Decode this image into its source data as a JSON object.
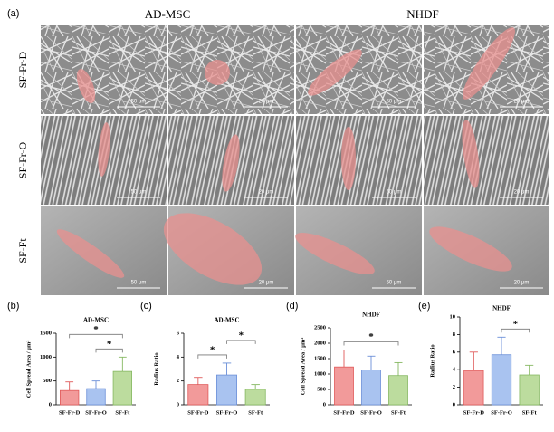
{
  "figure": {
    "panel_labels": [
      "(a)",
      "(b)",
      "(c)",
      "(d)",
      "(e)"
    ],
    "column_headers": [
      "AD-MSC",
      "NHDF"
    ],
    "rows": [
      {
        "label": "SF-Fr-D",
        "scale_bars": [
          "50 μm",
          "20 μm",
          "50 μm",
          "20 μm"
        ]
      },
      {
        "label": "SF-Fr-O",
        "scale_bars": [
          "50 μm",
          "20 μm",
          "50 μm",
          "20 μm"
        ]
      },
      {
        "label": "SF-Ft",
        "scale_bars": [
          "50 μm",
          "20 μm",
          "50 μm",
          "20 μm"
        ]
      }
    ]
  },
  "chart_data": [
    {
      "type": "bar",
      "title": "AD-MSC",
      "y_label": "Cell Spread Area / μm²",
      "categories": [
        "SF-Fr-D",
        "SF-Fr-O",
        "SF-Ft"
      ],
      "values": [
        300,
        340,
        700
      ],
      "errors": [
        180,
        160,
        300
      ],
      "colors": [
        "#f29a9a",
        "#a9c3f0",
        "#bcdc9e"
      ],
      "edge_colors": [
        "#e05a5a",
        "#6b8fd8",
        "#86b862"
      ],
      "ylim": [
        0,
        1500
      ],
      "yticks": [
        0,
        500,
        1000,
        1500
      ],
      "grid": false,
      "significance": [
        {
          "pair": [
            "SF-Fr-D",
            "SF-Ft"
          ],
          "label": "*"
        },
        {
          "pair": [
            "SF-Fr-O",
            "SF-Ft"
          ],
          "label": "*"
        }
      ]
    },
    {
      "type": "bar",
      "title": "AD-MSC",
      "y_label": "Radius Ratio",
      "categories": [
        "SF-Fr-D",
        "SF-Fr-O",
        "SF-Ft"
      ],
      "values": [
        1.7,
        2.5,
        1.3
      ],
      "errors": [
        0.6,
        1.0,
        0.4
      ],
      "colors": [
        "#f29a9a",
        "#a9c3f0",
        "#bcdc9e"
      ],
      "edge_colors": [
        "#e05a5a",
        "#6b8fd8",
        "#86b862"
      ],
      "ylim": [
        0,
        6
      ],
      "yticks": [
        0,
        2,
        4,
        6
      ],
      "grid": false,
      "significance": [
        {
          "pair": [
            "SF-Fr-D",
            "SF-Fr-O"
          ],
          "label": "*"
        },
        {
          "pair": [
            "SF-Fr-O",
            "SF-Ft"
          ],
          "label": "*"
        }
      ]
    },
    {
      "type": "bar",
      "title": "NHDF",
      "y_label": "Cell Spread Area / μm²",
      "categories": [
        "SF-Fr-D",
        "SF-Fr-O",
        "SF-Ft"
      ],
      "values": [
        1230,
        1130,
        950
      ],
      "errors": [
        550,
        450,
        420
      ],
      "colors": [
        "#f29a9a",
        "#a9c3f0",
        "#bcdc9e"
      ],
      "edge_colors": [
        "#e05a5a",
        "#6b8fd8",
        "#86b862"
      ],
      "ylim": [
        0,
        2500
      ],
      "yticks": [
        0,
        500,
        1000,
        1500,
        2000,
        2500
      ],
      "grid": false,
      "significance": [
        {
          "pair": [
            "SF-Fr-D",
            "SF-Ft"
          ],
          "label": "*"
        }
      ]
    },
    {
      "type": "bar",
      "title": "NHDF",
      "y_label": "Radius Ratio",
      "categories": [
        "SF-Fr-D",
        "SF-Fr-O",
        "SF-Ft"
      ],
      "values": [
        3.9,
        5.7,
        3.4
      ],
      "errors": [
        2.1,
        2.0,
        1.1
      ],
      "colors": [
        "#f29a9a",
        "#a9c3f0",
        "#bcdc9e"
      ],
      "edge_colors": [
        "#e05a5a",
        "#6b8fd8",
        "#86b862"
      ],
      "ylim": [
        0,
        10
      ],
      "yticks": [
        0,
        2,
        4,
        6,
        8,
        10
      ],
      "grid": false,
      "significance": [
        {
          "pair": [
            "SF-Fr-O",
            "SF-Ft"
          ],
          "label": "*"
        }
      ]
    }
  ]
}
